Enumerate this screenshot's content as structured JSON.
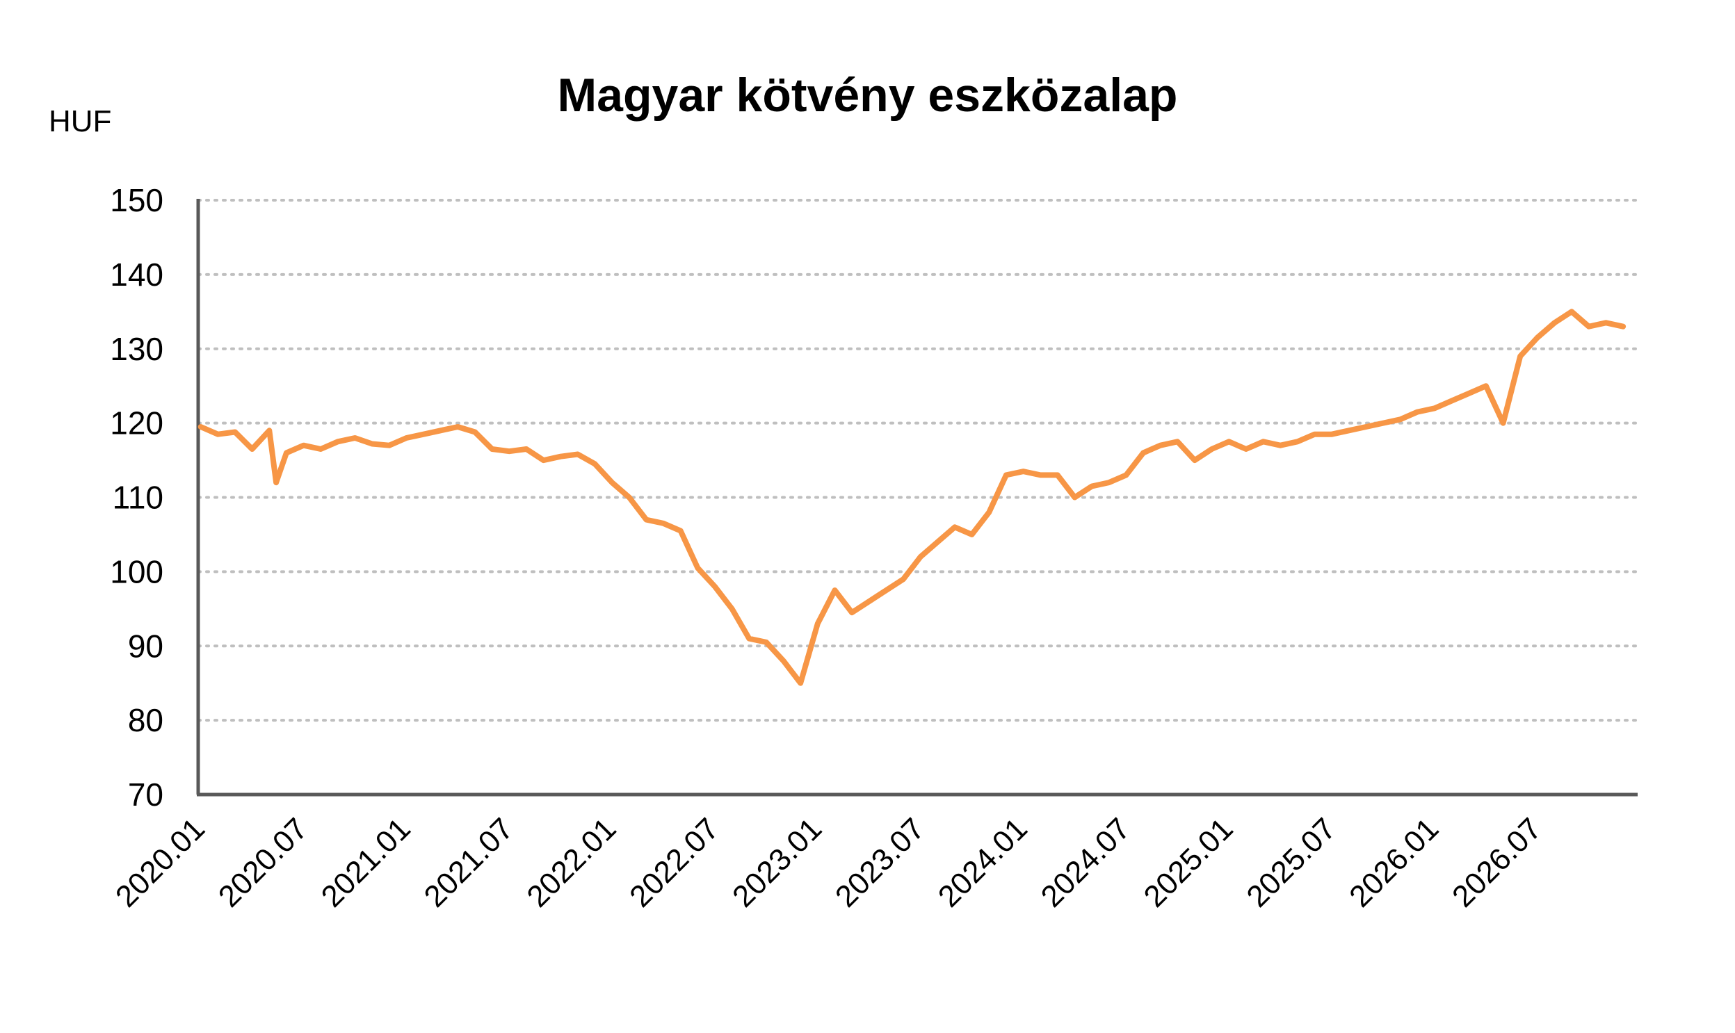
{
  "chart_data": {
    "type": "line",
    "title": "Magyar kötvény eszközalap",
    "unit_label": "HUF",
    "xlabel": "",
    "ylabel": "",
    "ylim": [
      70,
      150
    ],
    "yticks": [
      70,
      80,
      90,
      100,
      110,
      120,
      130,
      140,
      150
    ],
    "xlim": [
      "2020.01",
      "2026.12"
    ],
    "xticks": [
      "2020.01",
      "2020.07",
      "2021.01",
      "2021.07",
      "2022.01",
      "2022.07",
      "2023.01",
      "2023.07",
      "2024.01",
      "2024.07",
      "2025.01",
      "2025.07",
      "2026.01",
      "2026.07"
    ],
    "grid": "horizontal dotted",
    "line_color": "#F79646",
    "series": [
      {
        "points": [
          [
            "2020.01",
            119.5
          ],
          [
            "2020.02",
            118.5
          ],
          [
            "2020.03",
            118.8
          ],
          [
            "2020.04",
            116.5
          ],
          [
            "2020.05",
            119.0
          ],
          [
            "2020.05",
            112.0
          ],
          [
            "2020.06",
            116.0
          ],
          [
            "2020.07",
            117.0
          ],
          [
            "2020.08",
            116.5
          ],
          [
            "2020.09",
            117.5
          ],
          [
            "2020.10",
            118.0
          ],
          [
            "2020.11",
            117.2
          ],
          [
            "2020.12",
            117.0
          ],
          [
            "2021.01",
            118.0
          ],
          [
            "2021.02",
            118.5
          ],
          [
            "2021.03",
            119.0
          ],
          [
            "2021.04",
            119.5
          ],
          [
            "2021.05",
            118.8
          ],
          [
            "2021.06",
            116.5
          ],
          [
            "2021.07",
            116.2
          ],
          [
            "2021.08",
            116.5
          ],
          [
            "2021.09",
            115.0
          ],
          [
            "2021.10",
            115.5
          ],
          [
            "2021.11",
            115.8
          ],
          [
            "2021.12",
            114.5
          ],
          [
            "2022.01",
            112.0
          ],
          [
            "2022.02",
            110.0
          ],
          [
            "2022.03",
            107.0
          ],
          [
            "2022.04",
            106.5
          ],
          [
            "2022.05",
            105.5
          ],
          [
            "2022.06",
            100.5
          ],
          [
            "2022.07",
            98.0
          ],
          [
            "2022.08",
            95.0
          ],
          [
            "2022.09",
            91.0
          ],
          [
            "2022.10",
            90.5
          ],
          [
            "2022.11",
            88.0
          ],
          [
            "2022.12",
            85.0
          ],
          [
            "2023.01",
            93.0
          ],
          [
            "2023.02",
            97.5
          ],
          [
            "2023.03",
            94.5
          ],
          [
            "2023.04",
            96.0
          ],
          [
            "2023.05",
            97.5
          ],
          [
            "2023.06",
            99.0
          ],
          [
            "2023.07",
            102.0
          ],
          [
            "2023.08",
            104.0
          ],
          [
            "2023.09",
            106.0
          ],
          [
            "2023.10",
            105.0
          ],
          [
            "2023.11",
            108.0
          ],
          [
            "2023.12",
            113.0
          ],
          [
            "2024.01",
            113.5
          ],
          [
            "2024.02",
            113.0
          ],
          [
            "2024.03",
            113.0
          ],
          [
            "2024.04",
            110.0
          ],
          [
            "2024.05",
            111.5
          ],
          [
            "2024.06",
            112.0
          ],
          [
            "2024.07",
            113.0
          ],
          [
            "2024.08",
            116.0
          ],
          [
            "2024.09",
            117.0
          ],
          [
            "2024.10",
            117.5
          ],
          [
            "2024.11",
            115.0
          ],
          [
            "2024.12",
            116.5
          ],
          [
            "2025.01",
            117.5
          ],
          [
            "2025.02",
            116.5
          ],
          [
            "2025.03",
            117.5
          ],
          [
            "2025.04",
            117.0
          ],
          [
            "2025.05",
            117.5
          ],
          [
            "2025.06",
            118.5
          ],
          [
            "2025.07",
            118.5
          ],
          [
            "2025.08",
            119.0
          ],
          [
            "2025.09",
            119.5
          ],
          [
            "2025.10",
            120.0
          ],
          [
            "2025.11",
            120.5
          ],
          [
            "2025.12",
            121.5
          ],
          [
            "2026.01",
            122.0
          ],
          [
            "2026.02",
            123.0
          ],
          [
            "2026.03",
            124.0
          ],
          [
            "2026.04",
            125.0
          ],
          [
            "2026.05",
            120.0
          ],
          [
            "2026.06",
            129.0
          ],
          [
            "2026.07",
            131.5
          ],
          [
            "2026.08",
            133.5
          ],
          [
            "2026.09",
            135.0
          ],
          [
            "2026.10",
            133.0
          ],
          [
            "2026.11",
            133.5
          ],
          [
            "2026.12",
            133.0
          ]
        ]
      }
    ]
  }
}
